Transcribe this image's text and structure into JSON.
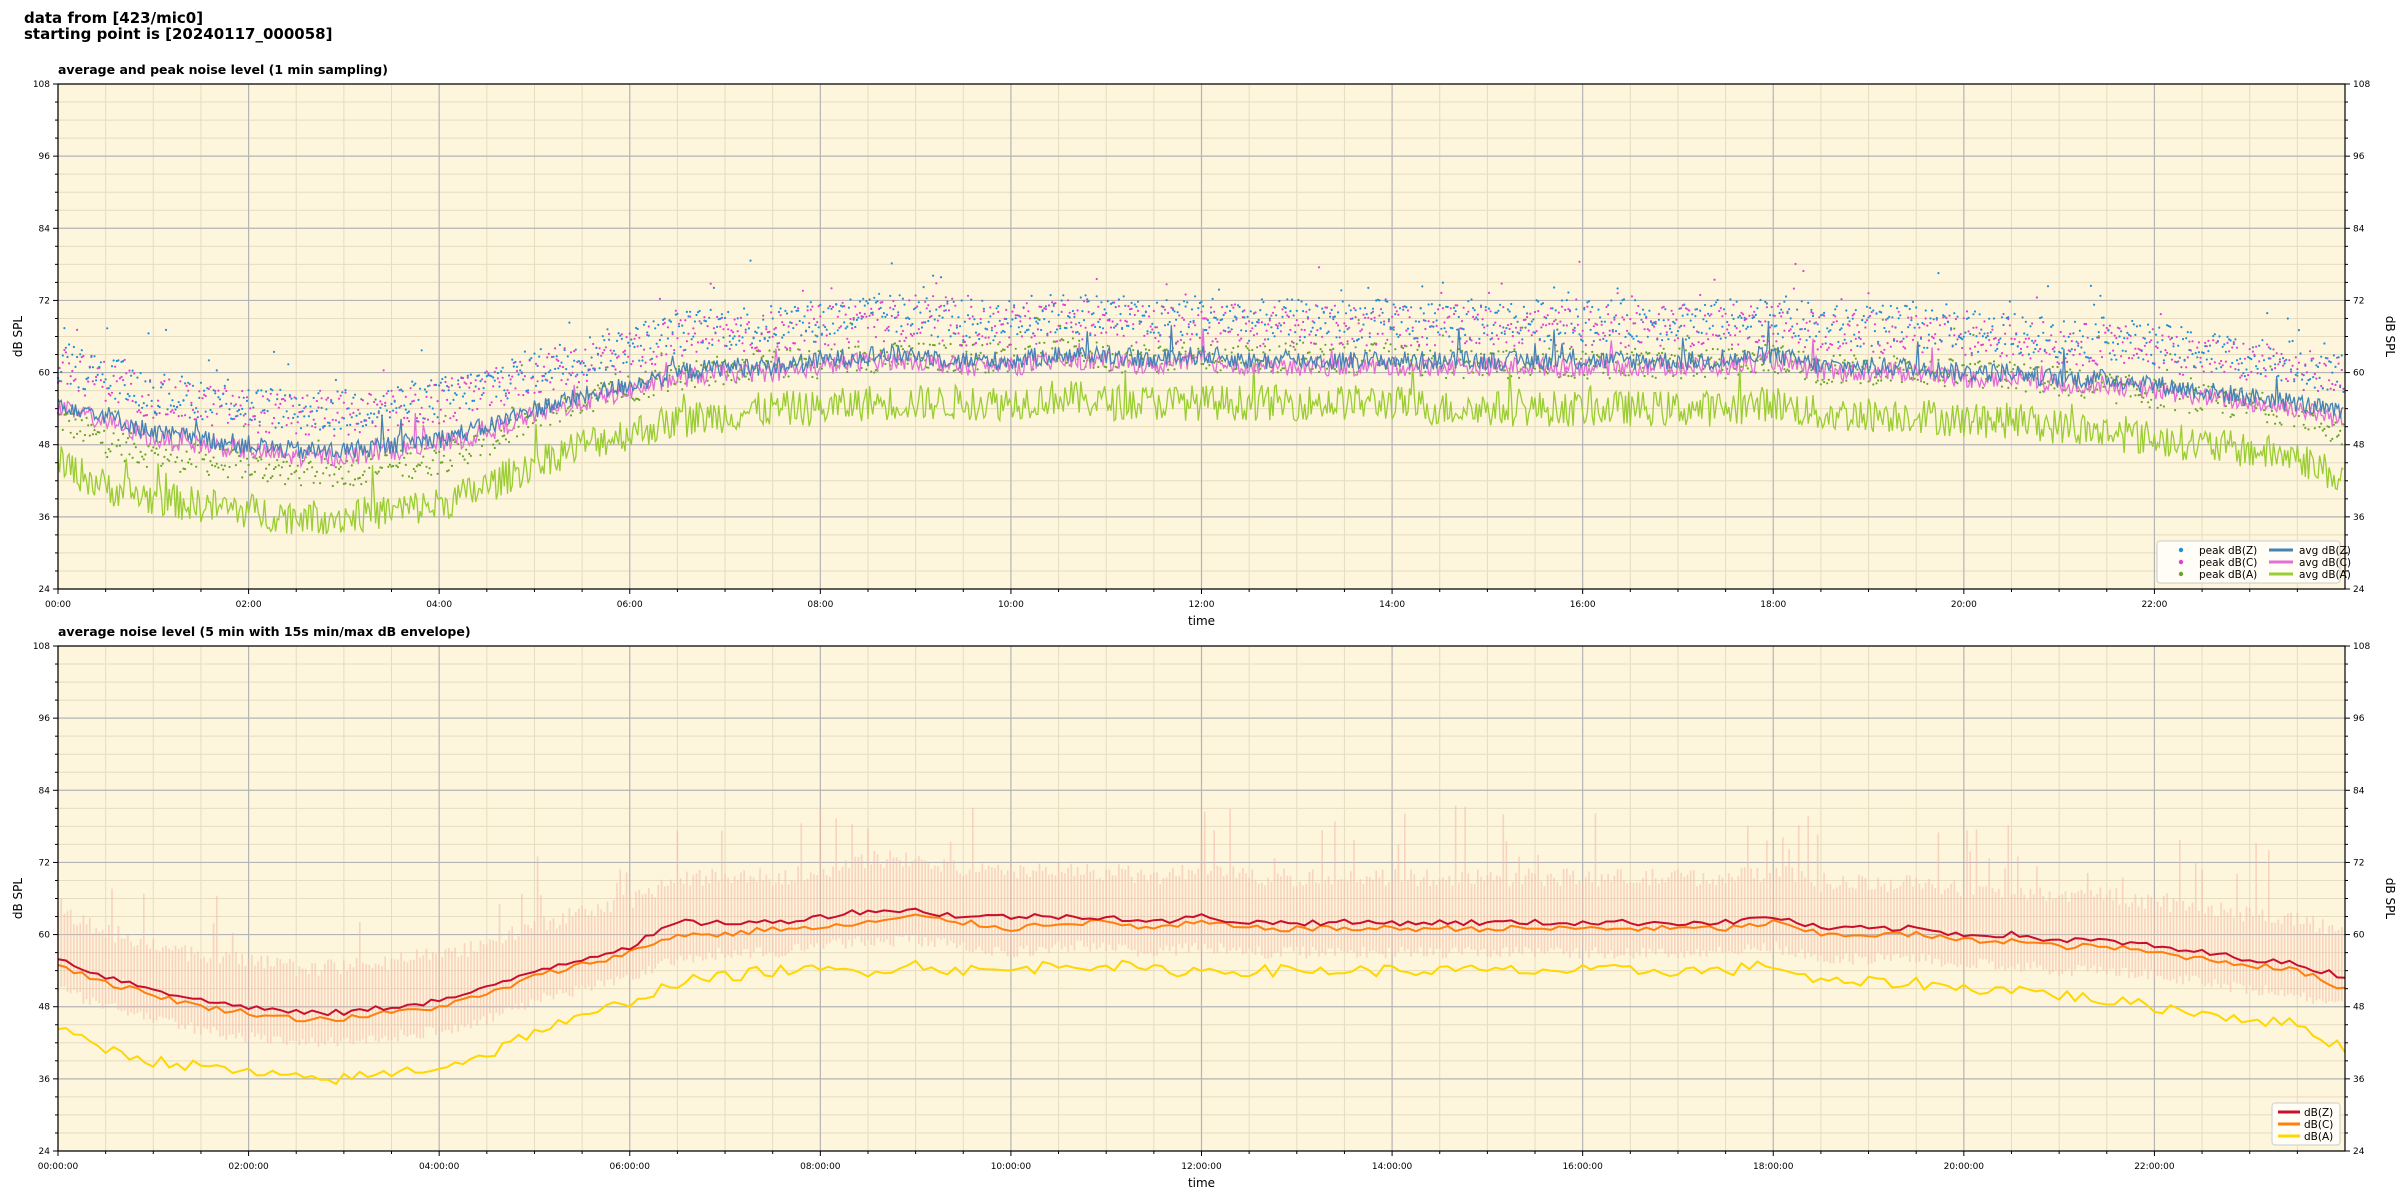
{
  "header": {
    "line1": "data from [423/mic0]",
    "line2": "starting point is [20240117_000058]"
  },
  "colors": {
    "plot_bg": "#fdf5dc",
    "grid_major": "#b4b4b4",
    "grid_minor": "#e6dcc0",
    "peak_z": "#1f8fd6",
    "peak_c": "#e03fd0",
    "peak_a": "#6aa32a",
    "avg_z": "#4682b4",
    "avg_c": "#e36fd6",
    "avg_a": "#9acd32",
    "env_fill": "#f4b8a8",
    "line_z": "#c8102e",
    "line_c": "#ff7f0e",
    "line_a": "#ffd700"
  },
  "chart_data": [
    {
      "type": "line",
      "title": "average and peak noise level (1 min sampling)",
      "xlabel": "time",
      "ylabel": "dB SPL",
      "ylim": [
        24,
        108
      ],
      "yticks": [
        "24",
        "36",
        "48",
        "60",
        "72",
        "84",
        "96",
        "108"
      ],
      "xlim_hours": [
        0,
        24
      ],
      "xticks": [
        "00:00",
        "02:00",
        "04:00",
        "06:00",
        "08:00",
        "10:00",
        "12:00",
        "14:00",
        "16:00",
        "18:00",
        "20:00",
        "22:00"
      ],
      "grid": true,
      "legend_position": "bottom-right",
      "legend": [
        "peak dB(Z)",
        "peak dB(C)",
        "peak dB(A)",
        "avg dB(Z)",
        "avg dB(C)",
        "avg dB(A)"
      ],
      "series_hourly": {
        "hours": [
          0,
          0.5,
          1,
          1.5,
          2,
          2.5,
          3,
          3.5,
          4,
          4.5,
          5,
          5.5,
          6,
          6.5,
          7,
          7.5,
          8,
          8.5,
          9,
          9.5,
          10,
          10.5,
          11,
          11.5,
          12,
          12.5,
          13,
          13.5,
          14,
          14.5,
          15,
          15.5,
          16,
          16.5,
          17,
          17.5,
          18,
          18.5,
          19,
          19.5,
          20,
          20.5,
          21,
          21.5,
          22,
          22.5,
          23,
          23.5,
          24
        ],
        "avg_z": [
          55,
          53,
          50,
          49,
          48,
          47,
          47,
          48,
          49,
          51,
          54,
          56,
          58,
          60,
          61,
          61,
          62,
          63,
          63,
          62,
          62,
          63,
          63,
          62,
          63,
          62,
          62,
          62,
          62,
          62,
          62,
          62,
          62,
          62,
          62,
          62,
          63,
          61,
          61,
          61,
          60,
          60,
          59,
          59,
          58,
          57,
          56,
          55,
          53
        ],
        "avg_c": [
          54,
          52,
          49,
          48,
          47,
          46,
          46,
          47,
          48,
          50,
          53,
          55,
          57,
          59,
          60,
          60,
          61,
          62,
          62,
          61,
          61,
          62,
          62,
          61,
          62,
          61,
          61,
          61,
          61,
          61,
          61,
          61,
          61,
          61,
          61,
          61,
          62,
          60,
          60,
          60,
          59,
          59,
          58,
          58,
          57,
          56,
          55,
          54,
          52
        ],
        "avg_a": [
          45,
          41,
          39,
          38,
          37,
          36,
          36,
          37,
          38,
          41,
          45,
          48,
          50,
          52,
          53,
          54,
          54,
          55,
          55,
          55,
          55,
          56,
          55,
          55,
          55,
          55,
          55,
          55,
          55,
          54,
          54,
          54,
          54,
          54,
          54,
          54,
          55,
          53,
          53,
          53,
          52,
          52,
          51,
          50,
          49,
          48,
          47,
          46,
          42
        ],
        "peak_z": [
          61,
          59,
          56,
          55,
          54,
          53,
          53,
          54,
          55,
          57,
          60,
          62,
          64,
          66,
          67,
          67,
          68,
          69,
          69,
          68,
          68,
          69,
          69,
          68,
          69,
          68,
          68,
          68,
          68,
          68,
          68,
          68,
          68,
          68,
          68,
          68,
          69,
          67,
          67,
          67,
          66,
          66,
          65,
          65,
          64,
          63,
          62,
          61,
          59
        ],
        "peak_c": [
          60,
          58,
          55,
          54,
          53,
          52,
          52,
          53,
          54,
          56,
          59,
          61,
          63,
          65,
          66,
          66,
          67,
          68,
          68,
          67,
          67,
          68,
          68,
          67,
          68,
          67,
          67,
          67,
          67,
          67,
          67,
          67,
          67,
          67,
          67,
          67,
          68,
          66,
          66,
          66,
          65,
          65,
          64,
          64,
          63,
          62,
          61,
          60,
          58
        ],
        "peak_a": [
          52,
          48,
          46,
          45,
          44,
          43,
          43,
          44,
          45,
          48,
          52,
          55,
          57,
          59,
          60,
          61,
          61,
          62,
          62,
          62,
          62,
          63,
          62,
          62,
          62,
          62,
          62,
          62,
          62,
          61,
          61,
          61,
          61,
          61,
          61,
          61,
          62,
          60,
          60,
          60,
          59,
          59,
          58,
          57,
          56,
          55,
          54,
          53,
          49
        ]
      }
    },
    {
      "type": "line",
      "title": "average noise level (5 min with 15s min/max dB envelope)",
      "xlabel": "time",
      "ylabel": "dB SPL",
      "ylim": [
        24,
        108
      ],
      "yticks": [
        "24",
        "36",
        "48",
        "60",
        "72",
        "84",
        "96",
        "108"
      ],
      "xlim_hours": [
        0,
        24
      ],
      "xticks": [
        "00:00:00",
        "02:00:00",
        "04:00:00",
        "06:00:00",
        "08:00:00",
        "10:00:00",
        "12:00:00",
        "14:00:00",
        "16:00:00",
        "18:00:00",
        "20:00:00",
        "22:00:00"
      ],
      "grid": true,
      "legend_position": "bottom-right",
      "legend": [
        "dB(Z)",
        "dB(C)",
        "dB(A)"
      ],
      "series_hourly": {
        "hours": [
          0,
          0.5,
          1,
          1.5,
          2,
          2.5,
          3,
          3.5,
          4,
          4.5,
          5,
          5.5,
          6,
          6.5,
          7,
          7.5,
          8,
          8.5,
          9,
          9.5,
          10,
          10.5,
          11,
          11.5,
          12,
          12.5,
          13,
          13.5,
          14,
          14.5,
          15,
          15.5,
          16,
          16.5,
          17,
          17.5,
          18,
          18.5,
          19,
          19.5,
          20,
          20.5,
          21,
          21.5,
          22,
          22.5,
          23,
          23.5,
          24
        ],
        "z": [
          56,
          53,
          51,
          49,
          48,
          47,
          47,
          48,
          49,
          51,
          54,
          56,
          58,
          62,
          62,
          62,
          63,
          64,
          64,
          63,
          63,
          63,
          63,
          62,
          63,
          62,
          62,
          62,
          62,
          62,
          62,
          62,
          62,
          62,
          62,
          62,
          63,
          61,
          61,
          61,
          60,
          60,
          59,
          59,
          58,
          57,
          56,
          55,
          53
        ],
        "c": [
          55,
          52,
          50,
          48,
          47,
          46,
          46,
          47,
          48,
          50,
          53,
          55,
          57,
          60,
          60,
          61,
          61,
          62,
          63,
          62,
          61,
          62,
          62,
          61,
          62,
          61,
          61,
          61,
          61,
          61,
          61,
          61,
          61,
          61,
          61,
          61,
          62,
          60,
          60,
          60,
          59,
          59,
          58,
          58,
          57,
          56,
          55,
          54,
          51
        ],
        "a": [
          44,
          41,
          39,
          38,
          37,
          36,
          36,
          37,
          38,
          40,
          44,
          46,
          49,
          52,
          53,
          54,
          54,
          54,
          55,
          54,
          54,
          55,
          55,
          54,
          54,
          54,
          54,
          54,
          54,
          54,
          54,
          54,
          54,
          54,
          54,
          54,
          55,
          52,
          52,
          52,
          51,
          51,
          50,
          49,
          48,
          47,
          46,
          45,
          41
        ],
        "env_max": [
          62,
          59,
          57,
          55,
          54,
          53,
          53,
          54,
          55,
          57,
          60,
          62,
          64,
          68,
          68,
          68,
          69,
          71,
          71,
          69,
          69,
          69,
          69,
          68,
          69,
          68,
          68,
          68,
          68,
          68,
          68,
          68,
          68,
          68,
          68,
          68,
          69,
          67,
          67,
          67,
          66,
          66,
          65,
          65,
          64,
          63,
          62,
          61,
          59
        ],
        "env_min": [
          52,
          49,
          47,
          45,
          44,
          43,
          43,
          44,
          45,
          47,
          50,
          52,
          54,
          57,
          58,
          58,
          59,
          60,
          60,
          59,
          58,
          59,
          59,
          58,
          59,
          58,
          58,
          58,
          58,
          58,
          58,
          58,
          58,
          58,
          58,
          58,
          59,
          57,
          57,
          57,
          56,
          56,
          55,
          55,
          54,
          53,
          52,
          51,
          49
        ]
      }
    }
  ]
}
